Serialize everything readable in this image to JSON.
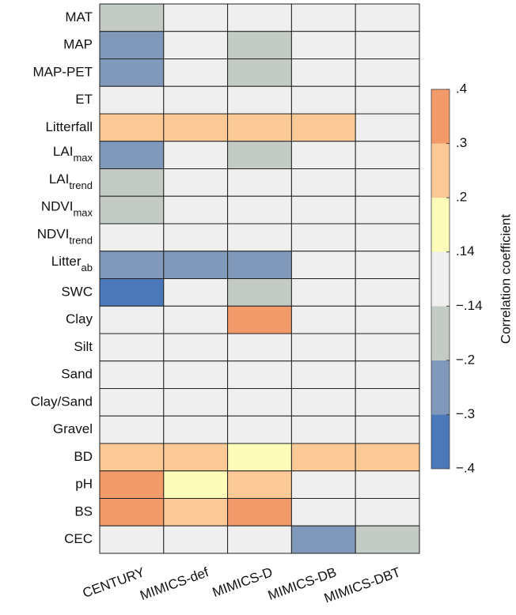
{
  "chart_data": {
    "type": "heatmap",
    "rows": [
      "MAT",
      "MAP",
      "MAP-PET",
      "ET",
      "Litterfall",
      {
        "text": "LAI",
        "sub": "max"
      },
      {
        "text": "LAI",
        "sub": "trend"
      },
      {
        "text": "NDVI",
        "sub": "max"
      },
      {
        "text": "NDVI",
        "sub": "trend"
      },
      {
        "text": "Litter",
        "sub": "ab"
      },
      "SWC",
      "Clay",
      "Silt",
      "Sand",
      "Clay/Sand",
      "Gravel",
      "BD",
      "pH",
      "BS",
      "CEC"
    ],
    "columns": [
      "CENTURY",
      "MIMICS-def",
      "MIMICS-D",
      "MIMICS-DB",
      "MIMICS-DBT"
    ],
    "values": [
      [
        -0.17,
        0,
        0,
        0,
        0
      ],
      [
        -0.25,
        0,
        -0.17,
        0,
        0
      ],
      [
        -0.25,
        0,
        -0.17,
        0,
        0
      ],
      [
        0,
        0,
        0,
        0,
        0
      ],
      [
        0.25,
        0.25,
        0.25,
        0.25,
        0
      ],
      [
        -0.25,
        0,
        -0.17,
        0,
        0
      ],
      [
        -0.17,
        0,
        0,
        0,
        0
      ],
      [
        -0.17,
        0,
        0,
        0,
        0
      ],
      [
        0,
        0,
        0,
        0,
        0
      ],
      [
        -0.25,
        -0.25,
        -0.25,
        0,
        0
      ],
      [
        -0.35,
        0,
        -0.17,
        0,
        0
      ],
      [
        0,
        0,
        0.35,
        0,
        0
      ],
      [
        0,
        0,
        0,
        0,
        0
      ],
      [
        0,
        0,
        0,
        0,
        0
      ],
      [
        0,
        0,
        0,
        0,
        0
      ],
      [
        0,
        0,
        0,
        0,
        0
      ],
      [
        0.25,
        0.25,
        0.17,
        0.25,
        0.25
      ],
      [
        0.35,
        0.17,
        0.25,
        0,
        0
      ],
      [
        0.35,
        0.25,
        0.35,
        0,
        0
      ],
      [
        0,
        0,
        0,
        -0.25,
        -0.17
      ]
    ],
    "colorbar": {
      "label": "Correlation coefficient",
      "ticks": [
        {
          "value": -0.4,
          "label": "−.4"
        },
        {
          "value": -0.3,
          "label": "−.3"
        },
        {
          "value": -0.2,
          "label": "−.2"
        },
        {
          "value": -0.14,
          "label": "−.14"
        },
        {
          "value": 0.14,
          "label": ".14"
        },
        {
          "value": 0.2,
          "label": ".2"
        },
        {
          "value": 0.3,
          "label": ".3"
        },
        {
          "value": 0.4,
          "label": ".4"
        }
      ],
      "colors": [
        "#4a78b8",
        "#8099bb",
        "#c3cbc4",
        "#efefef",
        "#fdfdb9",
        "#fbc996",
        "#f29a6a"
      ]
    }
  }
}
